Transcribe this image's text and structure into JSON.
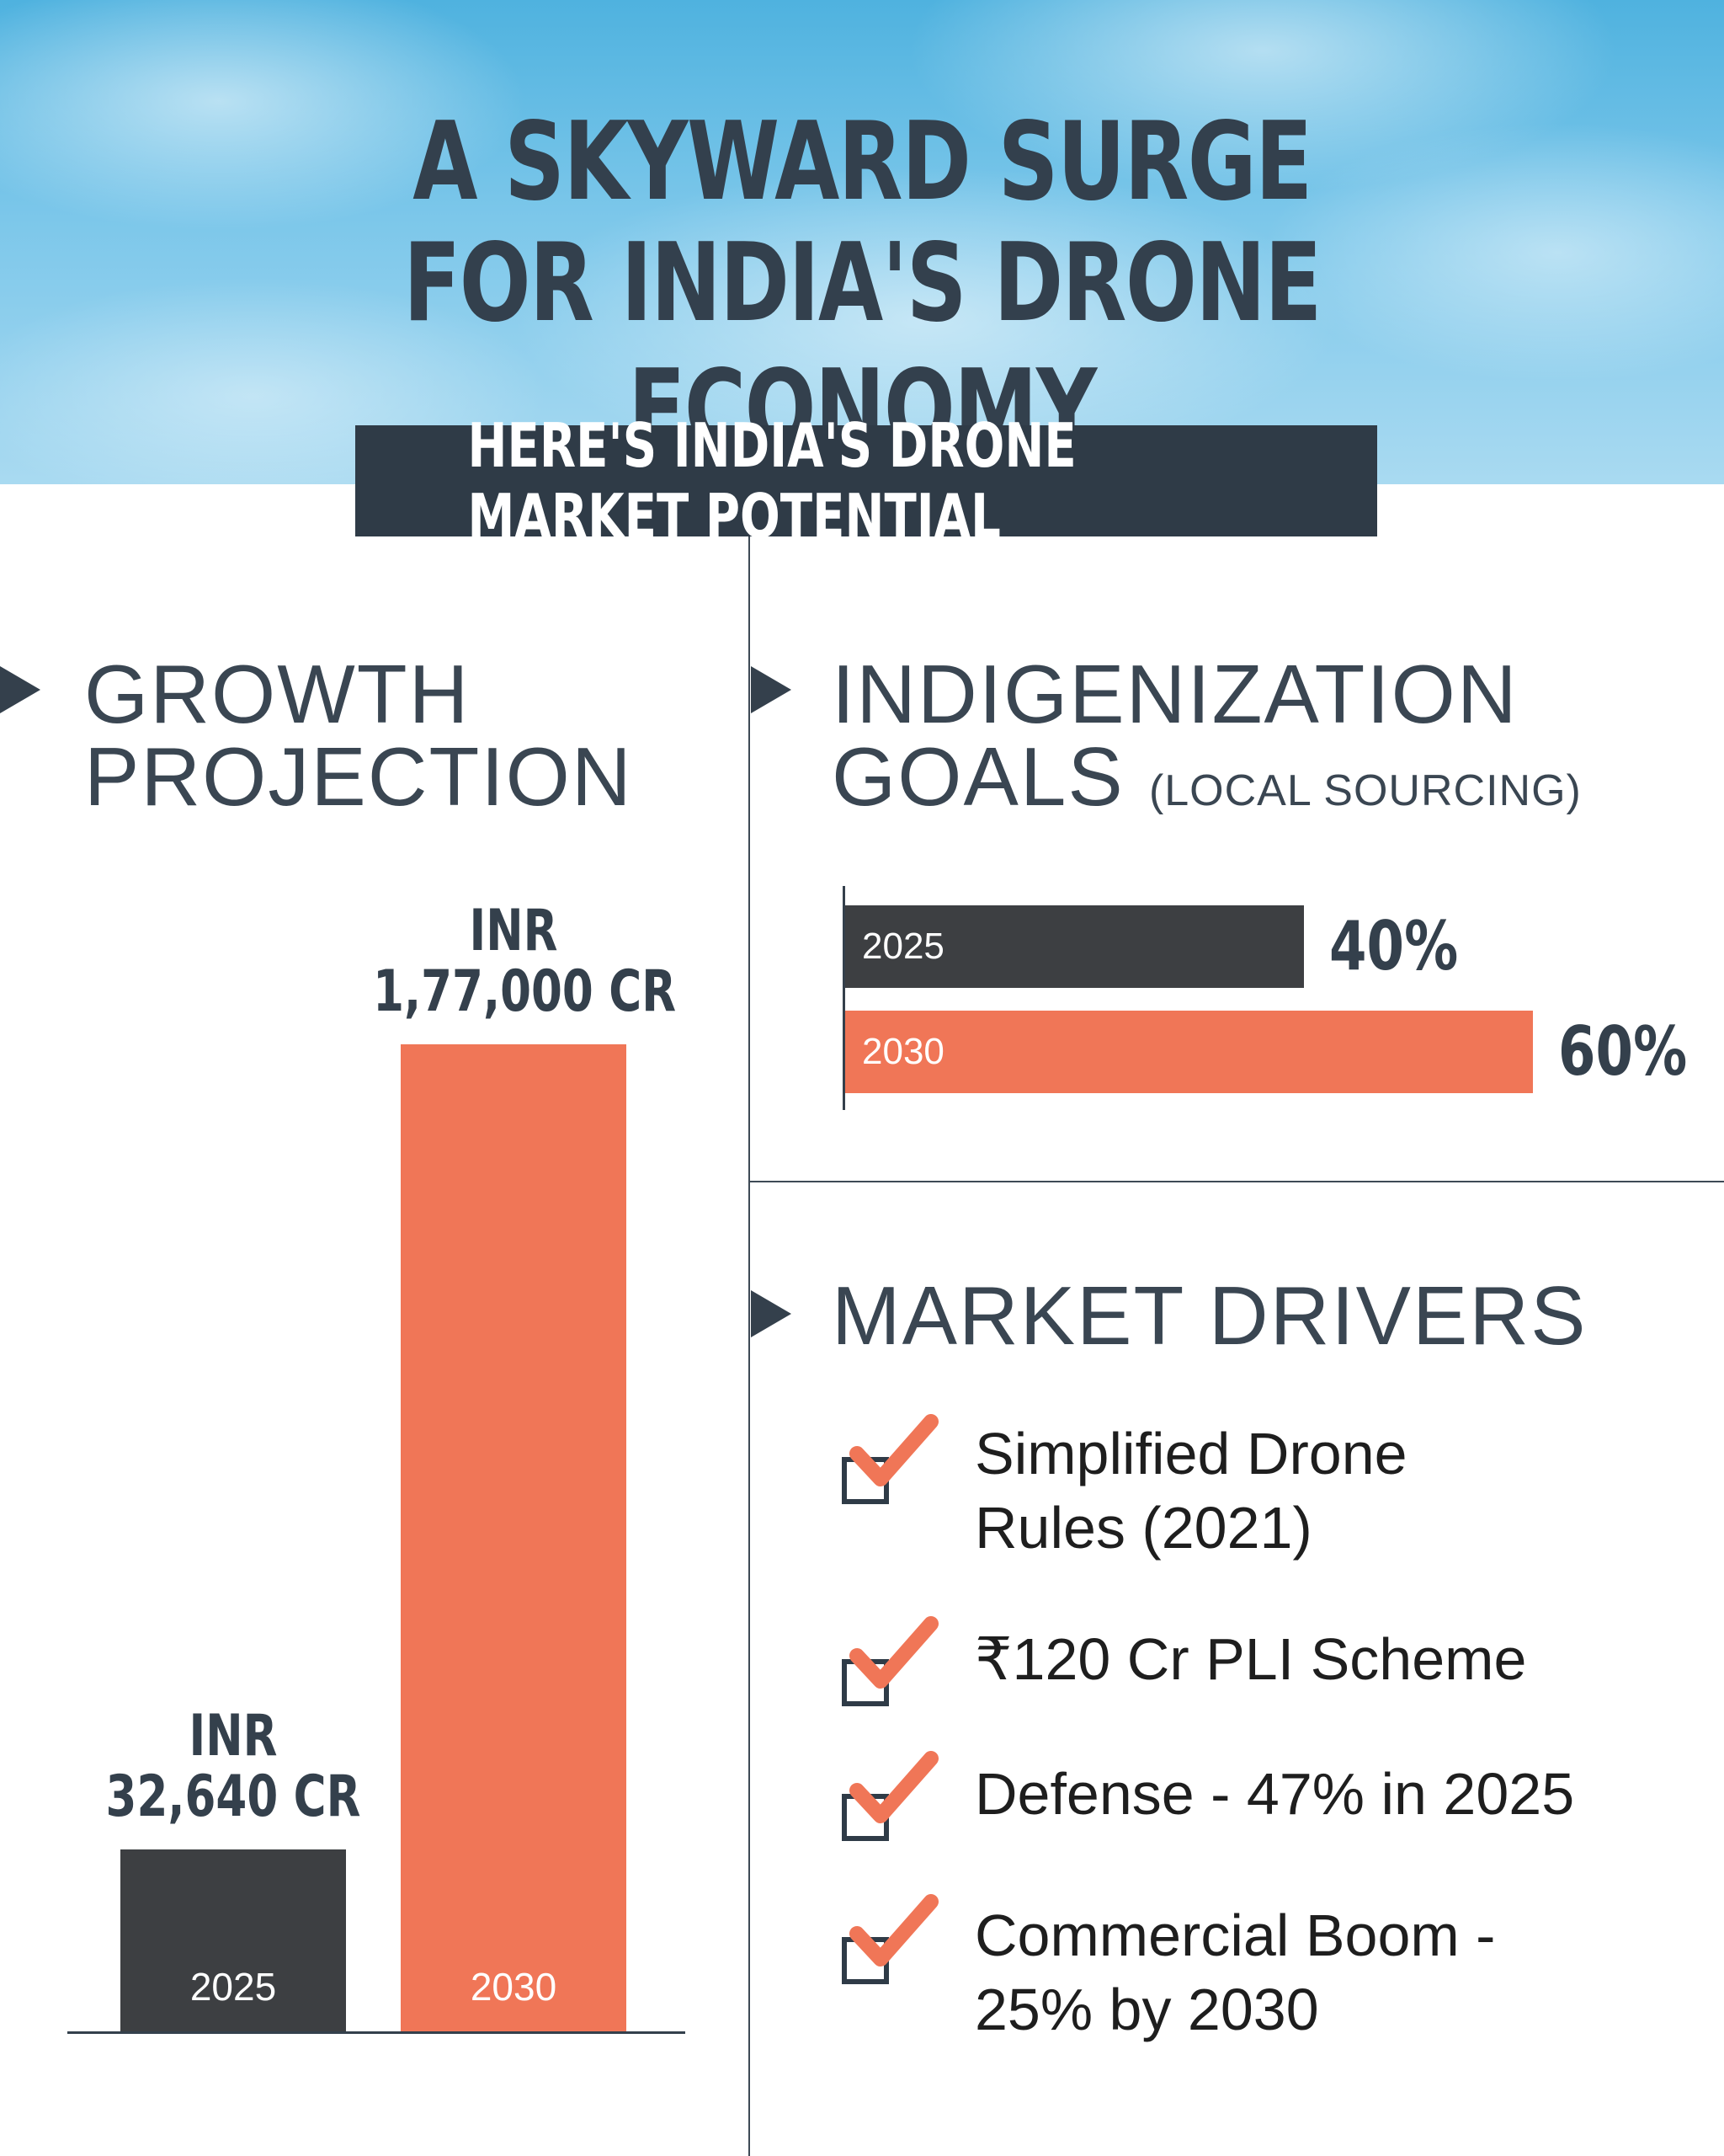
{
  "header": {
    "title_line1": "A SKYWARD SURGE",
    "title_line2": "FOR INDIA'S DRONE ECONOMY",
    "banner": "HERE'S INDIA'S DRONE MARKET POTENTIAL"
  },
  "growth": {
    "title_line1": "GROWTH",
    "title_line2": "PROJECTION"
  },
  "indigenization": {
    "title_line1": "INDIGENIZATION",
    "title_line2": "GOALS",
    "subtitle": "(LOCAL SOURCING)"
  },
  "drivers": {
    "title": "MARKET DRIVERS",
    "items": [
      {
        "line1": "Simplified Drone",
        "line2": "Rules (2021)"
      },
      {
        "line1": "₹120 Cr PLI Scheme",
        "line2": ""
      },
      {
        "line1": "Defense - 47% in 2025",
        "line2": ""
      },
      {
        "line1": "Commercial Boom -",
        "line2": "25% by 2030"
      }
    ]
  },
  "colors": {
    "dark": "#3d3f42",
    "accent": "#f07657",
    "text": "#34404c",
    "banner_bg": "#2f3b47"
  },
  "icons": {
    "section_marker": "triangle-arrow-icon",
    "driver_bullet": "checkbox-check-icon"
  },
  "chart_data": [
    {
      "type": "bar",
      "title": "GROWTH PROJECTION",
      "categories": [
        "2025",
        "2030"
      ],
      "values": [
        32640,
        177000
      ],
      "unit": "INR CR",
      "data_labels": [
        {
          "line1": "INR",
          "line2": "32,640 CR"
        },
        {
          "line1": "INR",
          "line2": "1,77,000 CR"
        }
      ],
      "colors": [
        "#3d3f42",
        "#f07657"
      ]
    },
    {
      "type": "bar",
      "orientation": "horizontal",
      "title": "INDIGENIZATION GOALS (LOCAL SOURCING)",
      "categories": [
        "2025",
        "2030"
      ],
      "values": [
        40,
        60
      ],
      "data_labels": [
        "40%",
        "60%"
      ],
      "colors": [
        "#3d3f42",
        "#f07657"
      ]
    }
  ]
}
